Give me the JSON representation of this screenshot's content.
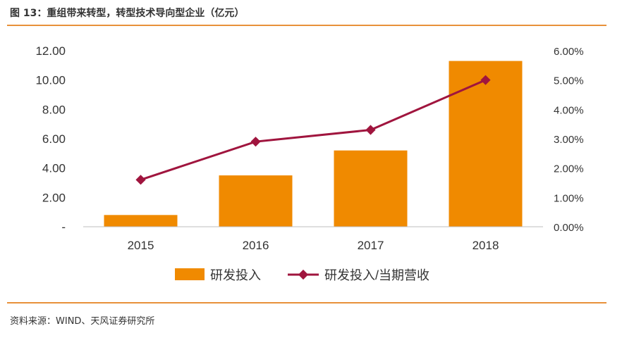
{
  "header": {
    "title": "图 13：重组带来转型，转型技术导向型企业（亿元）"
  },
  "footer": {
    "source": "资料来源：WIND、天风证券研究所"
  },
  "colors": {
    "bar": "#f08a00",
    "line": "#a0153e",
    "rule": "#e8913a",
    "axis": "#bfbfbf"
  },
  "chart_data": {
    "type": "bar",
    "categories": [
      "2015",
      "2016",
      "2017",
      "2018"
    ],
    "series": [
      {
        "name": "研发投入",
        "type": "bar",
        "axis": "left",
        "values": [
          0.8,
          3.5,
          5.2,
          11.3
        ]
      },
      {
        "name": "研发投入/当期营收",
        "type": "line",
        "axis": "right",
        "values": [
          1.6,
          2.9,
          3.3,
          5.0
        ]
      }
    ],
    "y_left": {
      "ylim": [
        0,
        12
      ],
      "ticks": [
        "-",
        "2.00",
        "4.00",
        "6.00",
        "8.00",
        "10.00",
        "12.00"
      ]
    },
    "y_right": {
      "ylim": [
        0,
        6
      ],
      "ticks": [
        "0.00%",
        "1.00%",
        "2.00%",
        "3.00%",
        "4.00%",
        "5.00%",
        "6.00%"
      ]
    },
    "grid": false,
    "legend": "bottom"
  }
}
